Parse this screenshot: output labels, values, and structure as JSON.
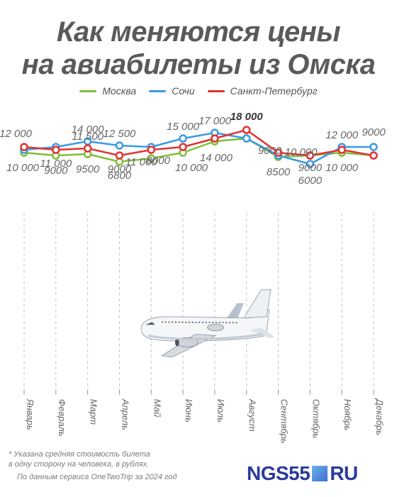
{
  "title": {
    "line1": "Как меняются цены",
    "line2": "на авиабилеты из Омска"
  },
  "footnote": {
    "line1": "* Указана средняя стоимость билета",
    "line2": "в одну сторону на человека, в рублях."
  },
  "source": "По данным сервиса OneTwoTrip за 2024 год",
  "brand": {
    "left": "NGS55",
    "right": "RU"
  },
  "chart_data": {
    "type": "line",
    "categories": [
      "Январь",
      "Февраль",
      "Март",
      "Апрель",
      "Май",
      "Июнь",
      "Июль",
      "Август",
      "Сентябрь",
      "Октябрь",
      "Ноябрь",
      "Декабрь"
    ],
    "series": [
      {
        "name": "Москва",
        "color": "#7fbf3a",
        "values": [
          10000,
          9000,
          9500,
          6800,
          8000,
          10000,
          14000,
          15000,
          8500,
          9000,
          10000,
          9000
        ],
        "labels": [
          "10 000",
          "9000",
          "9500",
          "6800",
          "8000",
          "10 000",
          "14 000",
          "",
          "8500",
          "",
          "10 000",
          ""
        ]
      },
      {
        "name": "Сочи",
        "color": "#3a9be3",
        "values": [
          11000,
          12000,
          14000,
          12500,
          12000,
          15000,
          17000,
          15000,
          9000,
          6000,
          12000,
          12000
        ],
        "labels": [
          "",
          "",
          "14 000",
          "12 500",
          "",
          "15 000",
          "17 000",
          "",
          "9000",
          "6000",
          "12 000",
          ""
        ]
      },
      {
        "name": "Санкт-Петербург",
        "color": "#e03434",
        "values": [
          12000,
          11000,
          11500,
          9000,
          11000,
          12000,
          15000,
          18000,
          10000,
          9000,
          11000,
          9000
        ],
        "labels": [
          "12 000",
          "11 000",
          "11 500",
          "9000",
          "11 000",
          "",
          "",
          "18 000",
          "10 000",
          "9000",
          "",
          "9000"
        ]
      }
    ],
    "ylim": [
      5000,
      18500
    ],
    "legend_position": "top-center",
    "grid": "vertical-dashed"
  },
  "illustration": "airplane"
}
